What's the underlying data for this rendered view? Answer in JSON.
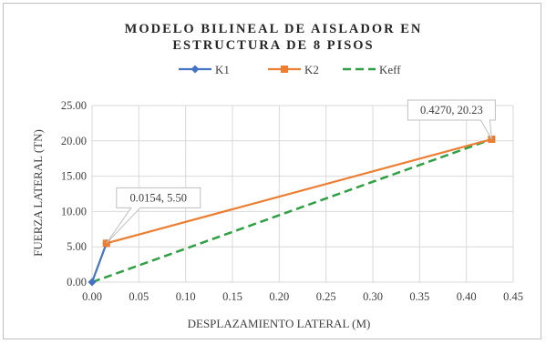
{
  "chart_data": {
    "type": "line",
    "title_lines": [
      "MODELO BILINEAL DE AISLADOR EN",
      "ESTRUCTURA DE 8 PISOS"
    ],
    "xlabel": "DESPLAZAMIENTO LATERAL (M)",
    "ylabel": "FUERZA LATERAL (TN)",
    "xlim": [
      0,
      0.45
    ],
    "ylim": [
      0,
      25
    ],
    "x_ticks": [
      "0.00",
      "0.05",
      "0.10",
      "0.15",
      "0.20",
      "0.25",
      "0.30",
      "0.35",
      "0.40",
      "0.45"
    ],
    "y_ticks": [
      "0.00",
      "5.00",
      "10.00",
      "15.00",
      "20.00",
      "25.00"
    ],
    "grid": true,
    "legend_position": "top",
    "series": [
      {
        "name": "K1",
        "color": "#4472C4",
        "style": "solid",
        "marker": "diamond",
        "points": [
          [
            0,
            0
          ],
          [
            0.0154,
            5.5
          ]
        ]
      },
      {
        "name": "K2",
        "color": "#ED7D31",
        "style": "solid",
        "marker": "square",
        "points": [
          [
            0.0154,
            5.5
          ],
          [
            0.427,
            20.23
          ]
        ]
      },
      {
        "name": "Keff",
        "color": "#2EA043",
        "style": "dashed",
        "marker": "none",
        "points": [
          [
            0,
            0
          ],
          [
            0.427,
            20.23
          ]
        ]
      }
    ],
    "annotations": [
      {
        "text": "0.0154, 5.50",
        "x": 0.0154,
        "y": 5.5,
        "placement": "above-right"
      },
      {
        "text": "0.4270, 20.23",
        "x": 0.427,
        "y": 20.23,
        "placement": "above-left"
      }
    ]
  }
}
